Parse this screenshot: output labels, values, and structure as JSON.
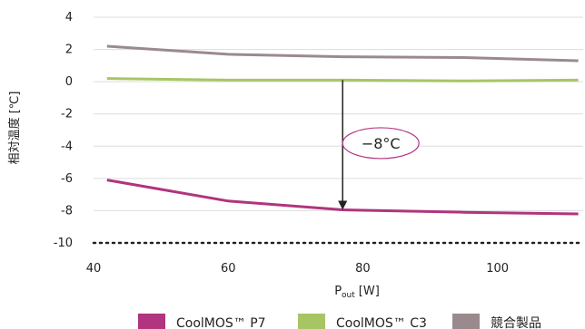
{
  "chart_data": {
    "type": "line",
    "title": "",
    "xlabel": "P",
    "xlabel_sub": "out",
    "xlabel_unit": "[W]",
    "ylabel": "相対温度 [℃]",
    "xlim": [
      40,
      113
    ],
    "ylim": [
      -10,
      4
    ],
    "x_ticks": [
      40,
      60,
      80,
      100
    ],
    "y_ticks": [
      4,
      2,
      0,
      -2,
      -4,
      -6,
      -8,
      -10
    ],
    "grid": true,
    "legend_position": "bottom",
    "series": [
      {
        "name": "CoolMOS™ P7",
        "color": "#b0347e",
        "x": [
          42,
          60,
          77,
          95,
          112
        ],
        "y": [
          -6.1,
          -7.4,
          -7.95,
          -8.1,
          -8.2
        ]
      },
      {
        "name": "CoolMOS™ C3",
        "color": "#a6c663",
        "x": [
          42,
          60,
          77,
          95,
          112
        ],
        "y": [
          0.2,
          0.1,
          0.1,
          0.05,
          0.1
        ]
      },
      {
        "name": "競合製品",
        "color": "#9b8a8d",
        "x": [
          42,
          60,
          77,
          95,
          112
        ],
        "y": [
          2.2,
          1.7,
          1.55,
          1.5,
          1.3
        ]
      }
    ],
    "annotation": {
      "text": "−8°C",
      "arrow_x": 77,
      "arrow_from_y": 0.1,
      "arrow_to_y": -7.95
    }
  }
}
